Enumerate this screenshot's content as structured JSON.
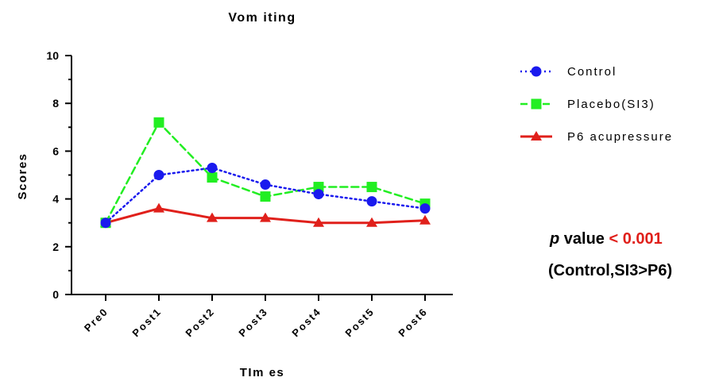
{
  "chart_data": {
    "type": "line",
    "title": "Vom iting",
    "xlabel": "TIm es",
    "ylabel": "Scores",
    "categories": [
      "Pre0",
      "Post1",
      "Post2",
      "Post3",
      "Post4",
      "Post5",
      "Post6"
    ],
    "ylim": [
      0,
      10
    ],
    "yticks": [
      "0",
      "2",
      "4",
      "6",
      "8",
      "10"
    ],
    "grid": false,
    "legend_position": "right",
    "series": [
      {
        "name": "Control",
        "color": "#1a1aee",
        "line_style": "dotted",
        "marker": "circle",
        "values": [
          3.0,
          5.0,
          5.3,
          4.6,
          4.2,
          3.9,
          3.6
        ]
      },
      {
        "name": "Placebo(SI3)",
        "color": "#22ee22",
        "line_style": "dashed",
        "marker": "square",
        "values": [
          3.0,
          7.2,
          4.9,
          4.1,
          4.5,
          4.5,
          3.8
        ]
      },
      {
        "name": "P6 acupressure",
        "color": "#e0201b",
        "line_style": "solid",
        "marker": "triangle",
        "values": [
          3.0,
          3.6,
          3.2,
          3.2,
          3.0,
          3.0,
          3.1
        ]
      }
    ]
  },
  "annotation": {
    "p_label": "p",
    "value_text": " value ",
    "p_value": "< 0.001",
    "comparison": "(Control,SI3>P6)"
  }
}
